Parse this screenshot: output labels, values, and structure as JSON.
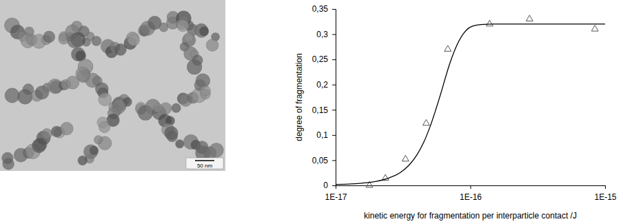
{
  "micrograph": {
    "scale_bar_label": "50 nm"
  },
  "chart_data": {
    "type": "scatter",
    "x_label": "kinetic energy for fragmentation per interparticle contact /J",
    "y_label": "degree of fragmentation",
    "log": "x",
    "grid": false,
    "xlim": [
      1e-17,
      1e-15
    ],
    "xticks": [
      {
        "value": 1e-17,
        "label": "1E-17"
      },
      {
        "value": 1e-16,
        "label": "1E-16"
      },
      {
        "value": 1e-15,
        "label": "1E-15"
      }
    ],
    "ylim": [
      0,
      0.35
    ],
    "yticks": [
      0,
      {
        "value": 0.05,
        "label": "0,05"
      },
      {
        "value": 0.1,
        "label": "0,1"
      },
      {
        "value": 0.15,
        "label": "0,15"
      },
      {
        "value": 0.2,
        "label": "0,2"
      },
      {
        "value": 0.25,
        "label": "0,25"
      },
      {
        "value": 0.3,
        "label": "0,3"
      },
      {
        "value": 0.35,
        "label": "0,35"
      }
    ],
    "series": [
      {
        "type": "scatter",
        "marker": "triangle",
        "color": "#555555",
        "x": [
          1.78e-17,
          2.34e-17,
          3.3e-17,
          4.7e-17,
          6.8e-17,
          1.39e-16,
          2.75e-16,
          8.4e-16
        ],
        "values": [
          0,
          0.014,
          0.052,
          0.123,
          0.27,
          0.32,
          0.33,
          0.31
        ]
      },
      {
        "type": "line",
        "line_style": "solid",
        "color": "#000000",
        "x": [
          1e-17,
          1.5e-17,
          2e-17,
          2.5e-17,
          3e-17,
          3.5e-17,
          4e-17,
          4.5e-17,
          5e-17,
          6e-17,
          7e-17,
          8e-17,
          9e-17,
          1e-16,
          1.2e-16,
          1.5e-16,
          2e-16,
          5e-16,
          1e-15
        ],
        "values": [
          0.002,
          0.004,
          0.008,
          0.015,
          0.025,
          0.04,
          0.06,
          0.085,
          0.115,
          0.18,
          0.24,
          0.28,
          0.303,
          0.314,
          0.319,
          0.32,
          0.32,
          0.32,
          0.32
        ]
      }
    ]
  }
}
